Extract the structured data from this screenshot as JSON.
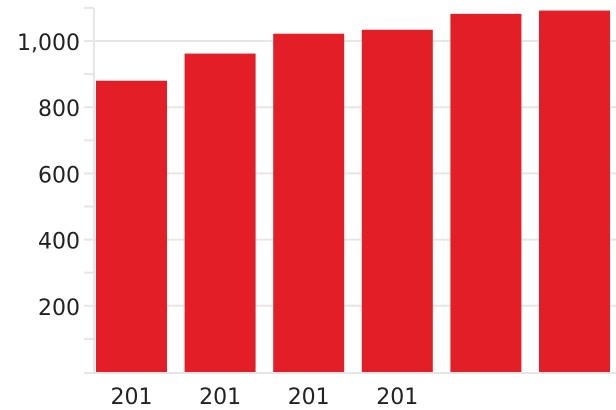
{
  "chart_data": {
    "type": "bar",
    "title": "",
    "xlabel": "",
    "ylabel": "",
    "categories": [
      "201",
      "201",
      "201",
      "201",
      "",
      ""
    ],
    "values": [
      880,
      962,
      1022,
      1034,
      1082,
      1092
    ],
    "ylim": [
      0,
      1100
    ],
    "yticks": [
      {
        "value": 200,
        "label": "200"
      },
      {
        "value": 400,
        "label": "400"
      },
      {
        "value": 600,
        "label": "600"
      },
      {
        "value": 800,
        "label": "800"
      },
      {
        "value": 1000,
        "label": "1,000"
      }
    ],
    "grid": true,
    "bar_color": "#e31e26",
    "grid_color": "#e6e6e6",
    "axis_color": "#e6e6e6",
    "text_color": "#222222"
  }
}
